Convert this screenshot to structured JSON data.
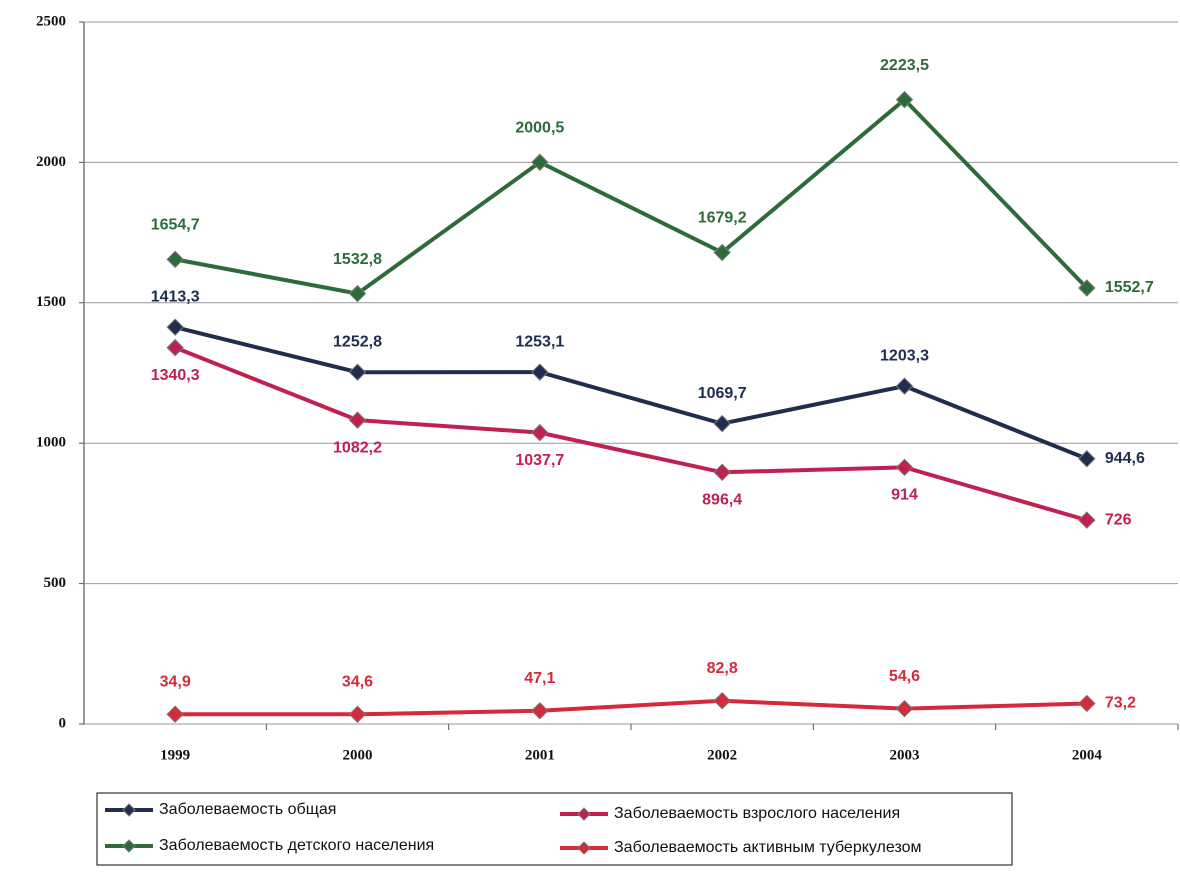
{
  "chart_data": {
    "type": "line",
    "categories": [
      "1999",
      "2000",
      "2001",
      "2002",
      "2003",
      "2004"
    ],
    "series": [
      {
        "name": "Заболеваемость общая",
        "color": "#1f2d4f",
        "values": [
          1413.3,
          1252.8,
          1253.1,
          1069.7,
          1203.3,
          944.6
        ],
        "value_labels": [
          "1413,3",
          "1252,8",
          "1253,1",
          "1069,7",
          "1203,3",
          "944,6"
        ]
      },
      {
        "name": "Заболеваемость детского  населения",
        "color": "#2e6b3a",
        "values": [
          1654.7,
          1532.8,
          2000.5,
          1679.2,
          2223.5,
          1552.7
        ],
        "value_labels": [
          "1654,7",
          "1532,8",
          "2000,5",
          "1679,2",
          "2223,5",
          "1552,7"
        ]
      },
      {
        "name": "Заболеваемость взрослого населения",
        "color": "#c0224f",
        "values": [
          1340.3,
          1082.2,
          1037.7,
          896.4,
          914,
          726
        ],
        "value_labels": [
          "1340,3",
          "1082,2",
          "1037,7",
          "896,4",
          "914",
          "726"
        ]
      },
      {
        "name": "Заболеваемость активным туберкулезом",
        "color": "#d42a3a",
        "values": [
          34.9,
          34.6,
          47.1,
          82.8,
          54.6,
          73.2
        ],
        "value_labels": [
          "34,9",
          "34,6",
          "47,1",
          "82,8",
          "54,6",
          "73,2"
        ]
      }
    ],
    "ylim": [
      0,
      2500
    ],
    "yticks": [
      0,
      500,
      1000,
      1500,
      2000,
      2500
    ],
    "grid": true,
    "legend": "bottom"
  }
}
